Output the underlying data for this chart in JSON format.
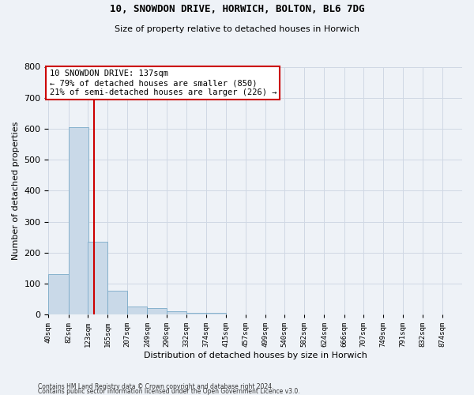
{
  "title1": "10, SNOWDON DRIVE, HORWICH, BOLTON, BL6 7DG",
  "title2": "Size of property relative to detached houses in Horwich",
  "xlabel": "Distribution of detached houses by size in Horwich",
  "ylabel": "Number of detached properties",
  "bin_edges": [
    40,
    82,
    123,
    165,
    207,
    249,
    290,
    332,
    374,
    415,
    457,
    499,
    540,
    582,
    624,
    666,
    707,
    749,
    791,
    832,
    874
  ],
  "bar_heights": [
    130,
    605,
    235,
    78,
    25,
    22,
    10,
    5,
    5,
    0,
    0,
    0,
    0,
    0,
    0,
    0,
    0,
    0,
    0,
    0
  ],
  "bar_color": "#c9d9e8",
  "bar_edge_color": "#7aaac8",
  "grid_color": "#d0d8e4",
  "background_color": "#eef2f7",
  "red_line_x": 137,
  "annotation_line1": "10 SNOWDON DRIVE: 137sqm",
  "annotation_line2": "← 79% of detached houses are smaller (850)",
  "annotation_line3": "21% of semi-detached houses are larger (226) →",
  "annotation_box_color": "#ffffff",
  "annotation_edge_color": "#cc0000",
  "red_line_color": "#cc0000",
  "ylim": [
    0,
    800
  ],
  "yticks": [
    0,
    100,
    200,
    300,
    400,
    500,
    600,
    700,
    800
  ],
  "footer1": "Contains HM Land Registry data © Crown copyright and database right 2024.",
  "footer2": "Contains public sector information licensed under the Open Government Licence v3.0."
}
